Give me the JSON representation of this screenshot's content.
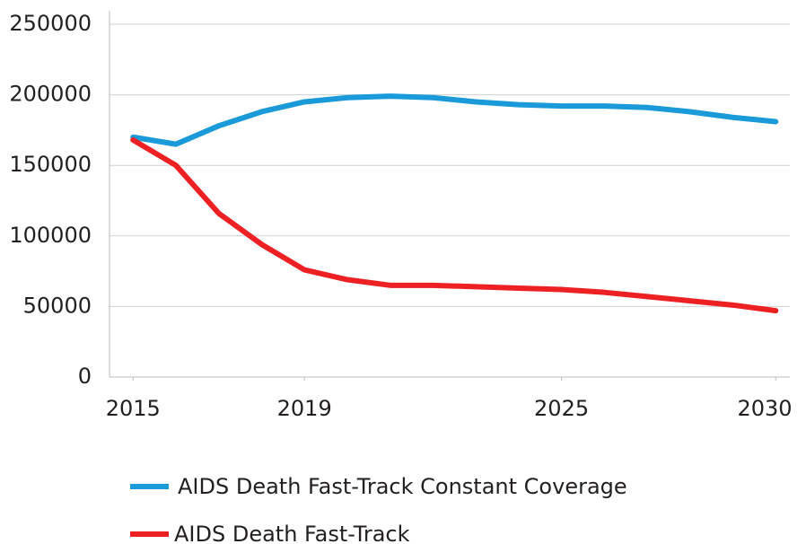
{
  "chart_data": {
    "type": "line",
    "x": [
      2015,
      2016,
      2017,
      2018,
      2019,
      2020,
      2021,
      2022,
      2023,
      2024,
      2025,
      2026,
      2027,
      2028,
      2029,
      2030
    ],
    "series": [
      {
        "name": "AIDS Death Fast-Track Constant Coverage",
        "color": "#1a9ad9",
        "values": [
          170000,
          165000,
          178000,
          188000,
          195000,
          198000,
          199000,
          198000,
          195000,
          193000,
          192000,
          192000,
          191000,
          188000,
          184000,
          181000
        ]
      },
      {
        "name": "AIDS Death Fast-Track",
        "color": "#ed2024",
        "values": [
          168000,
          150000,
          116000,
          94000,
          76000,
          69000,
          65000,
          65000,
          64000,
          63000,
          62000,
          60000,
          57000,
          54000,
          51000,
          47000
        ]
      }
    ],
    "xlim": [
      2014.45,
      2030.33
    ],
    "xticks": [
      2015,
      2019,
      2025,
      2030
    ],
    "ylim": [
      0,
      250000
    ],
    "yticks": [
      0,
      50000,
      100000,
      150000,
      200000,
      250000
    ],
    "grid": true,
    "legend": "bottom"
  }
}
